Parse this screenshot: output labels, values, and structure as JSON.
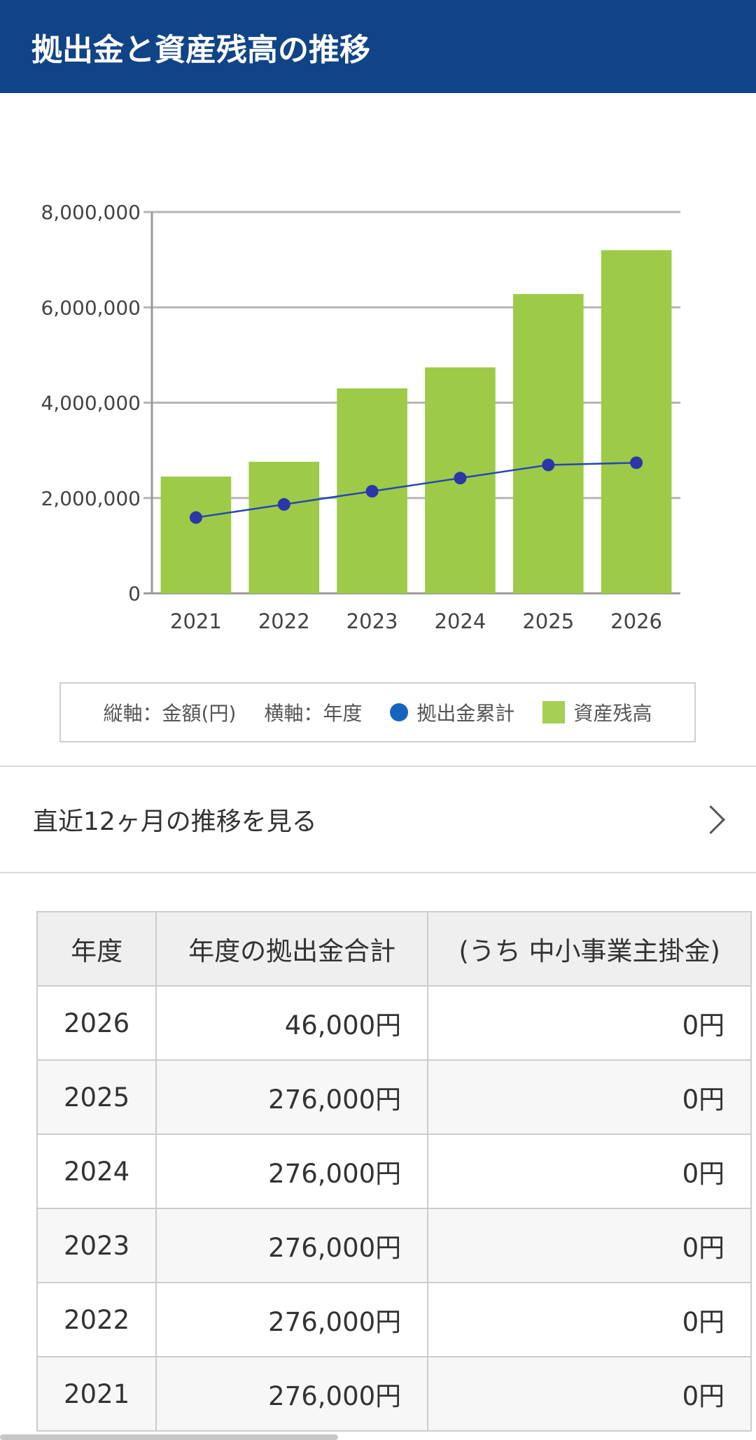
{
  "header": {
    "title": "拠出金と資産残高の推移"
  },
  "chart_data": {
    "type": "bar",
    "categories": [
      "2021",
      "2022",
      "2023",
      "2024",
      "2025",
      "2026"
    ],
    "series": [
      {
        "name": "資産残高",
        "type": "bar",
        "color": "#9dcb47",
        "values": [
          2450000,
          2760000,
          4300000,
          4740000,
          6280000,
          7200000
        ]
      },
      {
        "name": "拠出金累計",
        "type": "line",
        "color": "#1e3a9a",
        "values": [
          1590000,
          1866000,
          2142000,
          2418000,
          2694000,
          2740000
        ]
      }
    ],
    "ylim": [
      0,
      8000000
    ],
    "yticks": [
      "0",
      "2,000,000",
      "4,000,000",
      "6,000,000",
      "8,000,000"
    ],
    "grid": true
  },
  "legend": {
    "y_axis": "縦軸：金額(円)",
    "x_axis": "横軸：年度",
    "series_line": "拠出金累計",
    "series_bar": "資産残高"
  },
  "link": {
    "label": "直近12ヶ月の推移を見る"
  },
  "table": {
    "headers": [
      "年度",
      "年度の拠出金合計",
      "(うち 中小事業主掛金)"
    ],
    "rows": [
      [
        "2026",
        "46,000円",
        "0円"
      ],
      [
        "2025",
        "276,000円",
        "0円"
      ],
      [
        "2024",
        "276,000円",
        "0円"
      ],
      [
        "2023",
        "276,000円",
        "0円"
      ],
      [
        "2022",
        "276,000円",
        "0円"
      ],
      [
        "2021",
        "276,000円",
        "0円"
      ]
    ]
  }
}
